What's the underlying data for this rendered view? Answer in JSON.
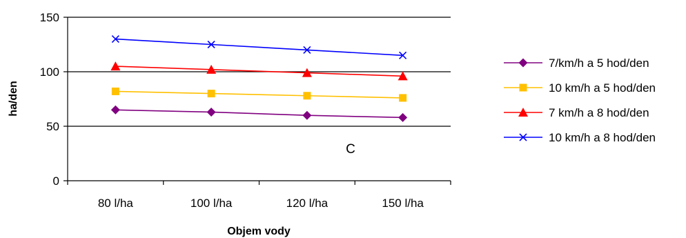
{
  "chart_data": {
    "type": "line",
    "categories": [
      "80 l/ha",
      "100 l/ha",
      "120 l/ha",
      "150 l/ha"
    ],
    "xlabel": "Objem vody",
    "ylabel": "ha/den",
    "ylim": [
      0,
      150
    ],
    "yticks": [
      0,
      50,
      100,
      150
    ],
    "grid": "horizontal at y ticks",
    "legend_position": "right",
    "annotation": "C",
    "series": [
      {
        "name": "7/km/h a 5 hod/den",
        "values": [
          65,
          63,
          60,
          58
        ],
        "color": "#800080",
        "marker": "diamond"
      },
      {
        "name": "10 km/h a 5 hod/den",
        "values": [
          82,
          80,
          78,
          76
        ],
        "color": "#FFC000",
        "marker": "square"
      },
      {
        "name": "7 km/h a 8 hod/den",
        "values": [
          105,
          102,
          99,
          96
        ],
        "color": "#FF0000",
        "marker": "triangle"
      },
      {
        "name": "10  km/h a 8 hod/den",
        "values": [
          130,
          125,
          120,
          115
        ],
        "color": "#0000FF",
        "marker": "x"
      }
    ]
  }
}
